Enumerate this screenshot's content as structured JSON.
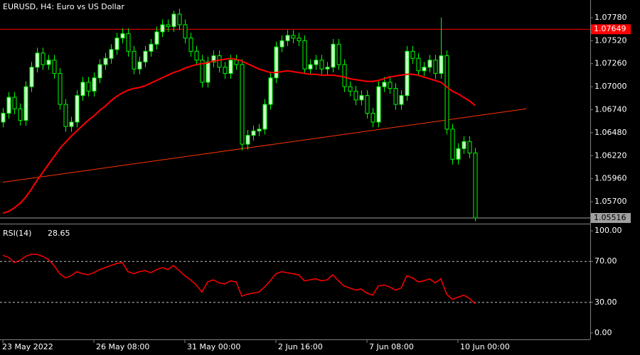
{
  "chart_data": [
    {
      "type": "candlestick",
      "title": "EURUSD, H4:  Euro vs US Dollar",
      "categories": [
        "23 May 2022",
        null,
        null,
        null,
        null,
        null,
        null,
        null,
        null,
        null,
        null,
        null,
        null,
        null,
        null,
        null,
        "26 May 08:00",
        null,
        null,
        null,
        null,
        null,
        null,
        null,
        null,
        null,
        null,
        null,
        null,
        null,
        null,
        null,
        "31 May 00:00",
        null,
        null,
        null,
        null,
        null,
        null,
        null,
        null,
        null,
        null,
        null,
        null,
        null,
        null,
        null,
        "2 Jun 16:00",
        null,
        null,
        null,
        null,
        null,
        null,
        null,
        null,
        null,
        null,
        null,
        null,
        null,
        null,
        null,
        "7 Jun 08:00",
        null,
        null,
        null,
        null,
        null,
        null,
        null,
        null,
        null,
        null,
        null,
        null,
        null,
        null,
        null,
        "10 Jun 00:00",
        null,
        null,
        null
      ],
      "open": [
        1.066,
        1.067,
        1.0688,
        1.0675,
        1.0662,
        1.07,
        1.0722,
        1.0738,
        1.0725,
        1.073,
        1.0715,
        1.068,
        1.0655,
        1.066,
        1.069,
        1.0705,
        1.0695,
        1.071,
        1.0725,
        1.0732,
        1.0742,
        1.0755,
        1.076,
        1.074,
        1.072,
        1.0728,
        1.074,
        1.0748,
        1.0762,
        1.077,
        1.0768,
        1.0782,
        1.077,
        1.0755,
        1.074,
        1.073,
        1.0705,
        1.0728,
        1.0735,
        1.0722,
        1.0715,
        1.073,
        1.0725,
        1.0635,
        1.0645,
        1.065,
        1.0652,
        1.068,
        1.071,
        1.0745,
        1.0752,
        1.0758,
        1.0755,
        1.0752,
        1.072,
        1.0725,
        1.073,
        1.072,
        1.0722,
        1.0748,
        1.0725,
        1.07,
        1.0695,
        1.0685,
        1.069,
        1.067,
        1.066,
        1.07,
        1.0705,
        1.0698,
        1.068,
        1.069,
        1.074,
        1.0732,
        1.0718,
        1.0722,
        1.073,
        1.0715,
        1.0735,
        1.0652,
        1.0618,
        1.063,
        1.0638,
        1.0625
      ],
      "high": [
        1.0676,
        1.0694,
        1.0694,
        1.0681,
        1.0706,
        1.0728,
        1.0744,
        1.0744,
        1.0736,
        1.0736,
        1.0721,
        1.0686,
        1.0666,
        1.0696,
        1.0711,
        1.0711,
        1.0716,
        1.0731,
        1.0738,
        1.0748,
        1.0761,
        1.0766,
        1.0766,
        1.0746,
        1.0734,
        1.0746,
        1.0754,
        1.0768,
        1.0776,
        1.0776,
        1.0786,
        1.0788,
        1.0776,
        1.0761,
        1.0746,
        1.0736,
        1.0734,
        1.0741,
        1.0741,
        1.0728,
        1.0736,
        1.0736,
        1.0731,
        1.0651,
        1.0656,
        1.0658,
        1.0686,
        1.0716,
        1.0751,
        1.0758,
        1.0764,
        1.0764,
        1.0761,
        1.0758,
        1.0731,
        1.0736,
        1.0736,
        1.0728,
        1.0754,
        1.0754,
        1.0731,
        1.0706,
        1.0701,
        1.0696,
        1.0696,
        1.0676,
        1.0706,
        1.0711,
        1.0711,
        1.0704,
        1.0696,
        1.0746,
        1.0746,
        1.0738,
        1.0728,
        1.0736,
        1.0736,
        1.0778,
        1.0741,
        1.0658,
        1.0636,
        1.0644,
        1.0644,
        1.0631
      ],
      "low": [
        1.0654,
        1.0664,
        1.0669,
        1.0656,
        1.0656,
        1.0694,
        1.0716,
        1.0719,
        1.0719,
        1.0709,
        1.0674,
        1.0649,
        1.0649,
        1.0654,
        1.0684,
        1.0689,
        1.0689,
        1.0704,
        1.0719,
        1.0726,
        1.0736,
        1.0749,
        1.0734,
        1.0714,
        1.0714,
        1.0722,
        1.0734,
        1.0742,
        1.0756,
        1.0762,
        1.0762,
        1.0764,
        1.0749,
        1.0734,
        1.0724,
        1.0699,
        1.0699,
        1.0722,
        1.0716,
        1.0709,
        1.0709,
        1.0719,
        1.0628,
        1.0629,
        1.0639,
        1.0644,
        1.0646,
        1.0674,
        1.0704,
        1.0739,
        1.0746,
        1.0749,
        1.0746,
        1.0714,
        1.0714,
        1.0719,
        1.0714,
        1.0714,
        1.0716,
        1.0719,
        1.0694,
        1.0689,
        1.0679,
        1.0679,
        1.0664,
        1.0654,
        1.0654,
        1.0694,
        1.0692,
        1.0674,
        1.0674,
        1.0684,
        1.0726,
        1.0712,
        1.0712,
        1.0716,
        1.0709,
        1.0709,
        1.0646,
        1.0612,
        1.0612,
        1.0624,
        1.0619,
        1.0548
      ],
      "close": [
        1.067,
        1.0688,
        1.0675,
        1.0662,
        1.07,
        1.0722,
        1.0738,
        1.0725,
        1.073,
        1.0715,
        1.068,
        1.0655,
        1.066,
        1.069,
        1.0705,
        1.0695,
        1.071,
        1.0725,
        1.0732,
        1.0742,
        1.0755,
        1.076,
        1.074,
        1.072,
        1.0728,
        1.074,
        1.0748,
        1.0762,
        1.077,
        1.0768,
        1.0782,
        1.077,
        1.0755,
        1.074,
        1.073,
        1.0705,
        1.0728,
        1.0735,
        1.0722,
        1.0715,
        1.073,
        1.0725,
        1.0635,
        1.0645,
        1.065,
        1.0652,
        1.068,
        1.071,
        1.0745,
        1.0752,
        1.0758,
        1.0755,
        1.0752,
        1.072,
        1.0725,
        1.073,
        1.072,
        1.0722,
        1.0748,
        1.0725,
        1.07,
        1.0695,
        1.0685,
        1.069,
        1.067,
        1.066,
        1.07,
        1.0705,
        1.0698,
        1.068,
        1.069,
        1.074,
        1.0732,
        1.0718,
        1.0722,
        1.073,
        1.0715,
        1.0735,
        1.0652,
        1.0618,
        1.063,
        1.0638,
        1.0625,
        1.05516
      ],
      "bull_color": "#ccffcc",
      "bear_color": "#000000",
      "wick_color": "#00ff00",
      "ma": {
        "color": "#ff0000",
        "values": [
          1.0557,
          1.0559,
          1.0563,
          1.0568,
          1.0575,
          1.0584,
          1.0594,
          1.0603,
          1.0612,
          1.0621,
          1.063,
          1.0637,
          1.0644,
          1.065,
          1.0656,
          1.0662,
          1.0667,
          1.0673,
          1.0678,
          1.0684,
          1.0689,
          1.0693,
          1.0696,
          1.0698,
          1.0699,
          1.0701,
          1.0704,
          1.0707,
          1.071,
          1.0713,
          1.0716,
          1.0718,
          1.0721,
          1.0723,
          1.0725,
          1.0726,
          1.0727,
          1.0729,
          1.073,
          1.0731,
          1.0732,
          1.0731,
          1.0729,
          1.0726,
          1.0723,
          1.072,
          1.0718,
          1.0716,
          1.0716,
          1.0717,
          1.0718,
          1.0717,
          1.0716,
          1.0715,
          1.0714,
          1.0714,
          1.0713,
          1.0713,
          1.0713,
          1.0712,
          1.0711,
          1.0709,
          1.0708,
          1.0707,
          1.0706,
          1.0706,
          1.0707,
          1.0709,
          1.0711,
          1.0712,
          1.0713,
          1.0714,
          1.0714,
          1.0713,
          1.0711,
          1.0709,
          1.0707,
          1.0705,
          1.07,
          1.0695,
          1.0692,
          1.0688,
          1.0684,
          1.0679
        ]
      },
      "trendline": {
        "x": [
          0,
          92
        ],
        "values": [
          1.0592,
          1.0675
        ],
        "color": "#ff3300"
      },
      "hlines": [
        {
          "value": 1.07649,
          "color": "#ff0000",
          "text_color": "#ffffff"
        },
        {
          "value": 1.05516,
          "color": "#a0a0a0",
          "text_color": "#000000"
        }
      ],
      "ylim": [
        1.05468,
        1.0798
      ],
      "yticks": [
        {
          "value": 1.0778,
          "label": "1.07780"
        },
        {
          "value": 1.0752,
          "label": "1.07520"
        },
        {
          "value": 1.0726,
          "label": "1.07260"
        },
        {
          "value": 1.07,
          "label": "1.07000"
        },
        {
          "value": 1.0674,
          "label": "1.06740"
        },
        {
          "value": 1.0648,
          "label": "1.06480"
        },
        {
          "value": 1.0622,
          "label": "1.06220"
        },
        {
          "value": 1.0596,
          "label": "1.05960"
        },
        {
          "value": 1.057,
          "label": "1.05700"
        }
      ]
    },
    {
      "type": "line",
      "label": "RSI(14)",
      "color": "#ff0000",
      "values": [
        76,
        74,
        69,
        71,
        75,
        77,
        77,
        75,
        72,
        66,
        58,
        54,
        56,
        60,
        58,
        57,
        59,
        62,
        64,
        66,
        68,
        69,
        60,
        58,
        60,
        61,
        59,
        62,
        64,
        62,
        66,
        61,
        56,
        52,
        47,
        40,
        50,
        52,
        49,
        48,
        51,
        50,
        36,
        38,
        39,
        40,
        45,
        51,
        58,
        60,
        59,
        58,
        57,
        51,
        52,
        53,
        51,
        52,
        57,
        51,
        46,
        44,
        42,
        43,
        39,
        37,
        46,
        47,
        45,
        42,
        44,
        56,
        54,
        50,
        51,
        53,
        49,
        53,
        38,
        33,
        35,
        37,
        34,
        28.65
      ],
      "ylim": [
        -6.25,
        104.9
      ],
      "yticks": [
        {
          "value": 100,
          "label": "100.00"
        },
        {
          "value": 70,
          "label": "70.00"
        },
        {
          "value": 30,
          "label": "30.00"
        },
        {
          "value": 0,
          "label": "0.00"
        }
      ],
      "levels": [
        70,
        30
      ]
    }
  ]
}
